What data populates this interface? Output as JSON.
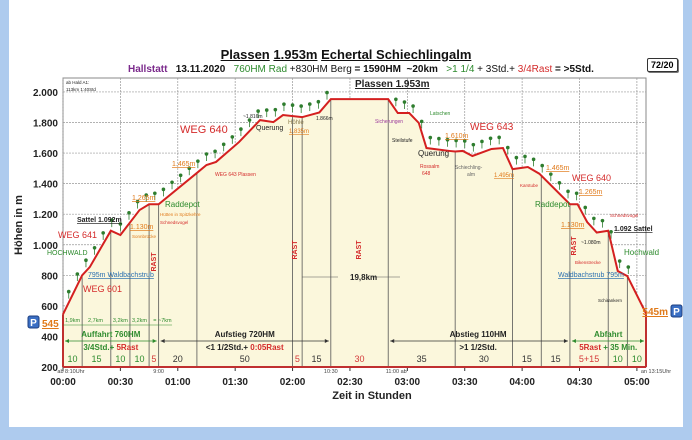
{
  "header": {
    "title_parts": [
      "Plassen",
      "1.953m",
      "Echertal Schiechlingalm"
    ],
    "subtitle": {
      "place": "Hallstatt",
      "date": "13.11.2020",
      "bike": "760HM Rad",
      "hike": "+830HM Berg",
      "total_hm": "= 1590HM",
      "distance": "~20km",
      "bike_time": ">1 1/4",
      "hike_time": "+ 3Std.+",
      "rest": "3/4Rast",
      "total_time": "= >5Std."
    },
    "badge": "72/20"
  },
  "chart_data": {
    "type": "line",
    "title": "Plassen 1.953m",
    "xlabel": "Zeit in Stunden",
    "ylabel": "Höhen in m",
    "xlim_minutes": [
      0,
      305
    ],
    "ylim": [
      200,
      2050
    ],
    "x_ticks": [
      "00:00",
      "00:30",
      "01:00",
      "01:30",
      "02:00",
      "02:30",
      "03:00",
      "03:30",
      "04:00",
      "04:30",
      "05:00"
    ],
    "y_ticks": [
      "200",
      "400",
      "600",
      "800",
      "1.000",
      "1.200",
      "1.400",
      "1.600",
      "1.800",
      "2.000"
    ],
    "y_tick_values": [
      200,
      400,
      600,
      800,
      1000,
      1200,
      1400,
      1600,
      1800,
      2000
    ],
    "grid": true,
    "series": [
      {
        "name": "Höhenprofil",
        "color": "#d42020",
        "t_minutes": [
          0,
          10,
          14,
          25,
          30,
          40,
          45,
          50,
          70,
          75,
          80,
          92,
          103,
          110,
          115,
          125,
          134,
          140,
          170,
          175,
          181,
          186,
          190,
          202,
          205,
          209,
          214,
          224,
          230,
          235,
          243,
          249,
          265,
          269,
          274,
          279,
          285,
          290,
          295,
          305
        ],
        "elevation_m": [
          545,
          800,
          854,
          1092,
          1064,
          1227,
          1265,
          1265,
          1470,
          1522,
          1542,
          1672,
          1816,
          1803,
          1849,
          1835,
          1866,
          1953,
          1953,
          1862,
          1862,
          1797,
          1633,
          1614,
          1610,
          1614,
          1581,
          1627,
          1633,
          1495,
          1509,
          1465,
          1265,
          1265,
          1149,
          1080,
          1092,
          828,
          795,
          545
        ]
      }
    ],
    "segment_boundaries_minutes": [
      10,
      25,
      35,
      45,
      50,
      70,
      120,
      125,
      140,
      170,
      205,
      235,
      250,
      265,
      285,
      295
    ],
    "segment_durations": [
      {
        "label": "10",
        "kind": "bike"
      },
      {
        "label": "15",
        "kind": "bike"
      },
      {
        "label": "10",
        "kind": "bike"
      },
      {
        "label": "10",
        "kind": "bike"
      },
      {
        "label": "5",
        "kind": "rest"
      },
      {
        "label": "20",
        "kind": "walk"
      },
      {
        "label": "50",
        "kind": "walk"
      },
      {
        "label": "5",
        "kind": "rest"
      },
      {
        "label": "15",
        "kind": "walk"
      },
      {
        "label": "30",
        "kind": "rest"
      },
      {
        "label": "35",
        "kind": "walk"
      },
      {
        "label": "30",
        "kind": "walk"
      },
      {
        "label": "15",
        "kind": "walk"
      },
      {
        "label": "15",
        "kind": "walk"
      },
      {
        "label": "5+15",
        "kind": "rest"
      },
      {
        "label": "10",
        "kind": "bike"
      },
      {
        "label": "10",
        "kind": "bike"
      }
    ],
    "clock_marks": {
      "start": "ab 8:10Uhr",
      "c1": "9:00",
      "c2": "10:30",
      "c3": "11:00 ab",
      "end": "an 13:15Uhr"
    },
    "distance_marks": [
      "1,9km",
      "2,7km",
      "3,2km",
      "3,2km",
      "= ~7km"
    ],
    "phases": {
      "auffahrt": {
        "title": "Auffahrt 760HM",
        "time": "3/4Std.+",
        "rest": "5Rast"
      },
      "aufstieg": {
        "title": "Aufstieg 720HM",
        "time": "<1 1/2Std.+",
        "rest": "0:05Rast"
      },
      "abstieg": {
        "title": "Abstieg 110HM",
        "time": ">1 1/2Std."
      },
      "abfahrt": {
        "title": "Abfahrt",
        "rest": "5Rast",
        "time": "+ 35 Min."
      }
    },
    "parking": {
      "icon": "P",
      "left_label": "545",
      "right_label": "545m"
    },
    "annotations": {
      "info1": "ab Hald A1:",
      "info2": "113km 1:40Std",
      "summit": "Plassen 1.953m",
      "sattel_l": "Sattel 1.092m",
      "weg641": "WEG 641",
      "hochwald_l": "HOCHWALD",
      "waldbach_l": "795m Waldbachstrub",
      "weg601": "WEG 601",
      "h1265_l": "1.265m",
      "raddepot_l": "Raddepot",
      "huetten": "Hütten in Spitzkehre",
      "schned_l": "Schnedsvogel",
      "h1130_l": "1.130m",
      "sonn": "Sonnbrücke",
      "h1465_l": "1.465m",
      "weg640_l": "WEG 640",
      "weg643p": "WEG 643 Plassen",
      "h1816": "~1.816m",
      "querung_l": "Querung",
      "hoehle": "Höhle",
      "h1835": "1.835m",
      "h1866": "1.866m",
      "rast1": "RAST",
      "rast2": "RAST",
      "rast3": "RAST",
      "rast4": "RAST",
      "dist": "19,8km",
      "sicher": "Sicherungen",
      "latschen": "Latschen",
      "steil": "Steilstufe",
      "querung_r": "Querung",
      "rossalm": "Rossalm",
      "r648": "648",
      "h1610": "1.610m",
      "weg643": "WEG 643",
      "schiech1": "Schiechling-",
      "schiech2": "alm",
      "h1495": "1.495m",
      "karst": "Karstube",
      "h1465_r": "1.465m",
      "weg640_r": "WEG 640",
      "h1265_r": "1.265m",
      "raddepot_r": "Raddepot",
      "schned_r": "Schnedsvogel",
      "h1130_r": "1.130m",
      "sattel_r": "1.092 Sattel",
      "h1080": "~1.080m",
      "hochwald_r": "Hochwald",
      "biken": "Bikenstrecke",
      "waldbach_r": "Waldbachstrub 795m",
      "schir": "Schirankern"
    }
  }
}
